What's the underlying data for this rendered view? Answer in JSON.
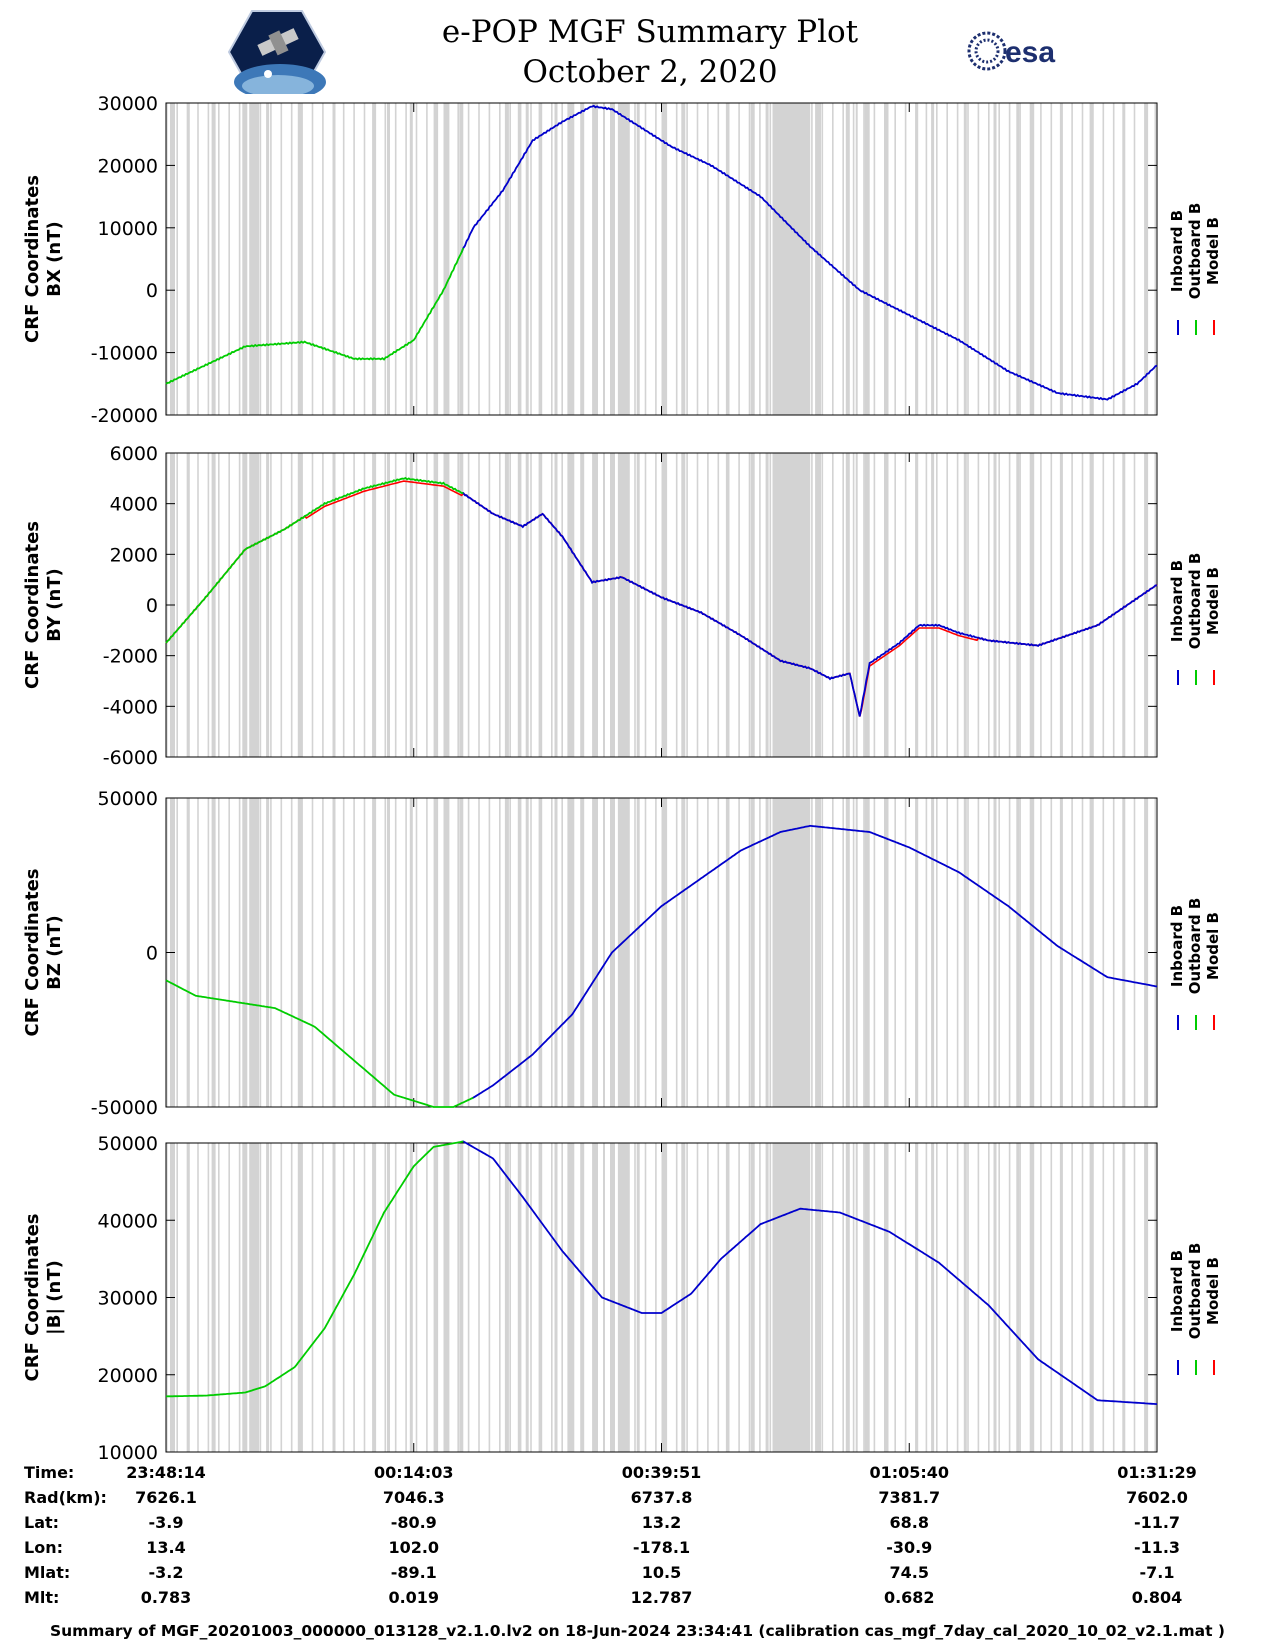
{
  "header": {
    "title": "e-POP MGF Summary Plot",
    "date": "October 2, 2020",
    "logo_left": "cassiope-satellite-logo",
    "logo_right": "esa-logo",
    "logo_right_text": "esa"
  },
  "colors": {
    "inboard": "#0000cc",
    "outboard": "#00cc00",
    "model": "#ff0000",
    "shade": "#d3d3d3"
  },
  "chart_data": [
    {
      "type": "line",
      "id": "bx",
      "ylabel_line1": "CRF Coordinates",
      "ylabel_line2": "BX (nT)",
      "ylim": [
        -20000,
        30000
      ],
      "yticks": [
        {
          "value": 30000,
          "label": "30000"
        },
        {
          "value": 20000,
          "label": "20000"
        },
        {
          "value": 10000,
          "label": "10000"
        },
        {
          "value": 0,
          "label": "0"
        },
        {
          "value": -10000,
          "label": "-10000"
        },
        {
          "value": -20000,
          "label": "-20000"
        }
      ],
      "legend": [
        "Inboard B",
        "Outboard B",
        "Model B"
      ],
      "outboard_end_x": 0.3,
      "series": [
        {
          "name": "B",
          "x": [
            0,
            0.04,
            0.08,
            0.14,
            0.19,
            0.22,
            0.25,
            0.28,
            0.31,
            0.34,
            0.37,
            0.4,
            0.43,
            0.45,
            0.48,
            0.51,
            0.55,
            0.6,
            0.65,
            0.7,
            0.75,
            0.8,
            0.85,
            0.9,
            0.95,
            0.98,
            1.0
          ],
          "y": [
            -15000,
            -12000,
            -9000,
            -8300,
            -11000,
            -11000,
            -8000,
            0,
            10000,
            16000,
            24000,
            27000,
            29500,
            29000,
            26000,
            23000,
            20000,
            15000,
            7000,
            0,
            -4000,
            -8000,
            -13000,
            -16500,
            -17500,
            -15000,
            -12000
          ]
        }
      ]
    },
    {
      "type": "line",
      "id": "by",
      "ylabel_line1": "CRF Coordinates",
      "ylabel_line2": "BY (nT)",
      "ylim": [
        -6000,
        6000
      ],
      "yticks": [
        {
          "value": 6000,
          "label": "6000"
        },
        {
          "value": 4000,
          "label": "4000"
        },
        {
          "value": 2000,
          "label": "2000"
        },
        {
          "value": 0,
          "label": "0"
        },
        {
          "value": -2000,
          "label": "-2000"
        },
        {
          "value": -4000,
          "label": "-4000"
        },
        {
          "value": -6000,
          "label": "-6000"
        }
      ],
      "legend": [
        "Inboard B",
        "Outboard B",
        "Model B"
      ],
      "outboard_end_x": 0.3,
      "series": [
        {
          "name": "B",
          "x": [
            0,
            0.04,
            0.08,
            0.12,
            0.16,
            0.2,
            0.24,
            0.28,
            0.3,
            0.33,
            0.36,
            0.38,
            0.4,
            0.42,
            0.43,
            0.46,
            0.5,
            0.54,
            0.58,
            0.62,
            0.65,
            0.67,
            0.69,
            0.7,
            0.71,
            0.74,
            0.76,
            0.78,
            0.8,
            0.83,
            0.88,
            0.94,
            1.0
          ],
          "y": [
            -1500,
            300,
            2200,
            3000,
            4000,
            4600,
            5000,
            4800,
            4400,
            3600,
            3100,
            3600,
            2700,
            1500,
            900,
            1100,
            300,
            -300,
            -1200,
            -2200,
            -2500,
            -2900,
            -2700,
            -4400,
            -2300,
            -1500,
            -800,
            -800,
            -1100,
            -1400,
            -1600,
            -800,
            800
          ]
        }
      ]
    },
    {
      "type": "line",
      "id": "bz",
      "ylabel_line1": "CRF Coordinates",
      "ylabel_line2": "BZ (nT)",
      "ylim": [
        -50000,
        50000
      ],
      "yticks": [
        {
          "value": 50000,
          "label": "50000"
        },
        {
          "value": 0,
          "label": "0"
        },
        {
          "value": -50000,
          "label": "-50000"
        }
      ],
      "legend": [
        "Inboard B",
        "Outboard B",
        "Model B"
      ],
      "outboard_end_x": 0.31,
      "series": [
        {
          "name": "B",
          "x": [
            0,
            0.03,
            0.07,
            0.11,
            0.15,
            0.19,
            0.23,
            0.27,
            0.29,
            0.31,
            0.33,
            0.37,
            0.41,
            0.45,
            0.5,
            0.54,
            0.58,
            0.62,
            0.65,
            0.71,
            0.75,
            0.8,
            0.85,
            0.9,
            0.95,
            1.0
          ],
          "y": [
            -9000,
            -14000,
            -16000,
            -18000,
            -24000,
            -35000,
            -46000,
            -50000,
            -50000,
            -47000,
            -43000,
            -33000,
            -20000,
            0,
            15000,
            24000,
            33000,
            39000,
            41000,
            39000,
            34000,
            26000,
            15000,
            2000,
            -8000,
            -11000
          ]
        }
      ]
    },
    {
      "type": "line",
      "id": "bmag",
      "ylabel_line1": "CRF Coordinates",
      "ylabel_line2": "|B| (nT)",
      "ylim": [
        10000,
        50000
      ],
      "yticks": [
        {
          "value": 50000,
          "label": "50000"
        },
        {
          "value": 40000,
          "label": "40000"
        },
        {
          "value": 30000,
          "label": "30000"
        },
        {
          "value": 20000,
          "label": "20000"
        },
        {
          "value": 10000,
          "label": "10000"
        }
      ],
      "legend": [
        "Inboard B",
        "Outboard B",
        "Model B"
      ],
      "outboard_end_x": 0.3,
      "series": [
        {
          "name": "B",
          "x": [
            0,
            0.04,
            0.08,
            0.1,
            0.13,
            0.16,
            0.19,
            0.22,
            0.25,
            0.27,
            0.3,
            0.33,
            0.36,
            0.4,
            0.44,
            0.48,
            0.5,
            0.53,
            0.56,
            0.6,
            0.64,
            0.68,
            0.73,
            0.78,
            0.83,
            0.88,
            0.94,
            1.0
          ],
          "y": [
            17200,
            17300,
            17700,
            18500,
            21000,
            26000,
            33000,
            41000,
            47000,
            49500,
            50200,
            48000,
            43000,
            36000,
            30000,
            28000,
            28000,
            30500,
            35000,
            39500,
            41500,
            41000,
            38500,
            34500,
            29000,
            22000,
            16700,
            16200
          ]
        }
      ]
    }
  ],
  "shading_bands": [
    [
      0.004,
      0.009
    ],
    [
      0.021,
      0.024
    ],
    [
      0.046,
      0.05
    ],
    [
      0.077,
      0.082
    ],
    [
      0.085,
      0.094
    ],
    [
      0.101,
      0.104
    ],
    [
      0.133,
      0.137
    ],
    [
      0.168,
      0.171
    ],
    [
      0.208,
      0.212
    ],
    [
      0.223,
      0.226
    ],
    [
      0.246,
      0.249
    ],
    [
      0.27,
      0.274
    ],
    [
      0.28,
      0.286
    ],
    [
      0.296,
      0.3
    ],
    [
      0.342,
      0.346
    ],
    [
      0.355,
      0.358
    ],
    [
      0.363,
      0.366
    ],
    [
      0.376,
      0.379
    ],
    [
      0.392,
      0.395
    ],
    [
      0.405,
      0.412
    ],
    [
      0.418,
      0.422
    ],
    [
      0.43,
      0.436
    ],
    [
      0.441,
      0.443
    ],
    [
      0.448,
      0.452
    ],
    [
      0.456,
      0.468
    ],
    [
      0.475,
      0.478
    ],
    [
      0.5,
      0.504
    ],
    [
      0.52,
      0.524
    ],
    [
      0.565,
      0.568
    ],
    [
      0.59,
      0.594
    ],
    [
      0.605,
      0.608
    ],
    [
      0.612,
      0.65
    ],
    [
      0.655,
      0.661
    ],
    [
      0.686,
      0.69
    ],
    [
      0.696,
      0.698
    ],
    [
      0.705,
      0.71
    ],
    [
      0.726,
      0.729
    ],
    [
      0.756,
      0.759
    ],
    [
      0.772,
      0.775
    ],
    [
      0.805,
      0.808
    ],
    [
      0.835,
      0.838
    ],
    [
      0.858,
      0.861
    ],
    [
      0.872,
      0.876
    ],
    [
      0.902,
      0.905
    ],
    [
      0.932,
      0.936
    ],
    [
      0.965,
      0.968
    ],
    [
      0.988,
      0.991
    ]
  ],
  "shading_fine_start": 0.0,
  "shading_fine_step": 0.0105,
  "xaxis": {
    "row_labels": [
      "Time:",
      "Rad(km):",
      "Lat:",
      "Lon:",
      "Mlat:",
      "Mlt:"
    ],
    "ticks": [
      {
        "pos": 0.0,
        "values": [
          "23:48:14",
          "7626.1",
          "-3.9",
          "13.4",
          "-3.2",
          "0.783"
        ]
      },
      {
        "pos": 0.25,
        "values": [
          "00:14:03",
          "7046.3",
          "-80.9",
          "102.0",
          "-89.1",
          "0.019"
        ]
      },
      {
        "pos": 0.5,
        "values": [
          "00:39:51",
          "6737.8",
          "13.2",
          "-178.1",
          "10.5",
          "12.787"
        ]
      },
      {
        "pos": 0.75,
        "values": [
          "01:05:40",
          "7381.7",
          "68.8",
          "-30.9",
          "74.5",
          "0.682"
        ]
      },
      {
        "pos": 1.0,
        "values": [
          "01:31:29",
          "7602.0",
          "-11.7",
          "-11.3",
          "-7.1",
          "0.804"
        ]
      }
    ]
  },
  "footer": "Summary of MGF_20201003_000000_013128_v2.1.0.lv2 on 18-Jun-2024 23:34:41 (calibration cas_mgf_7day_cal_2020_10_02_v2.1.mat )"
}
